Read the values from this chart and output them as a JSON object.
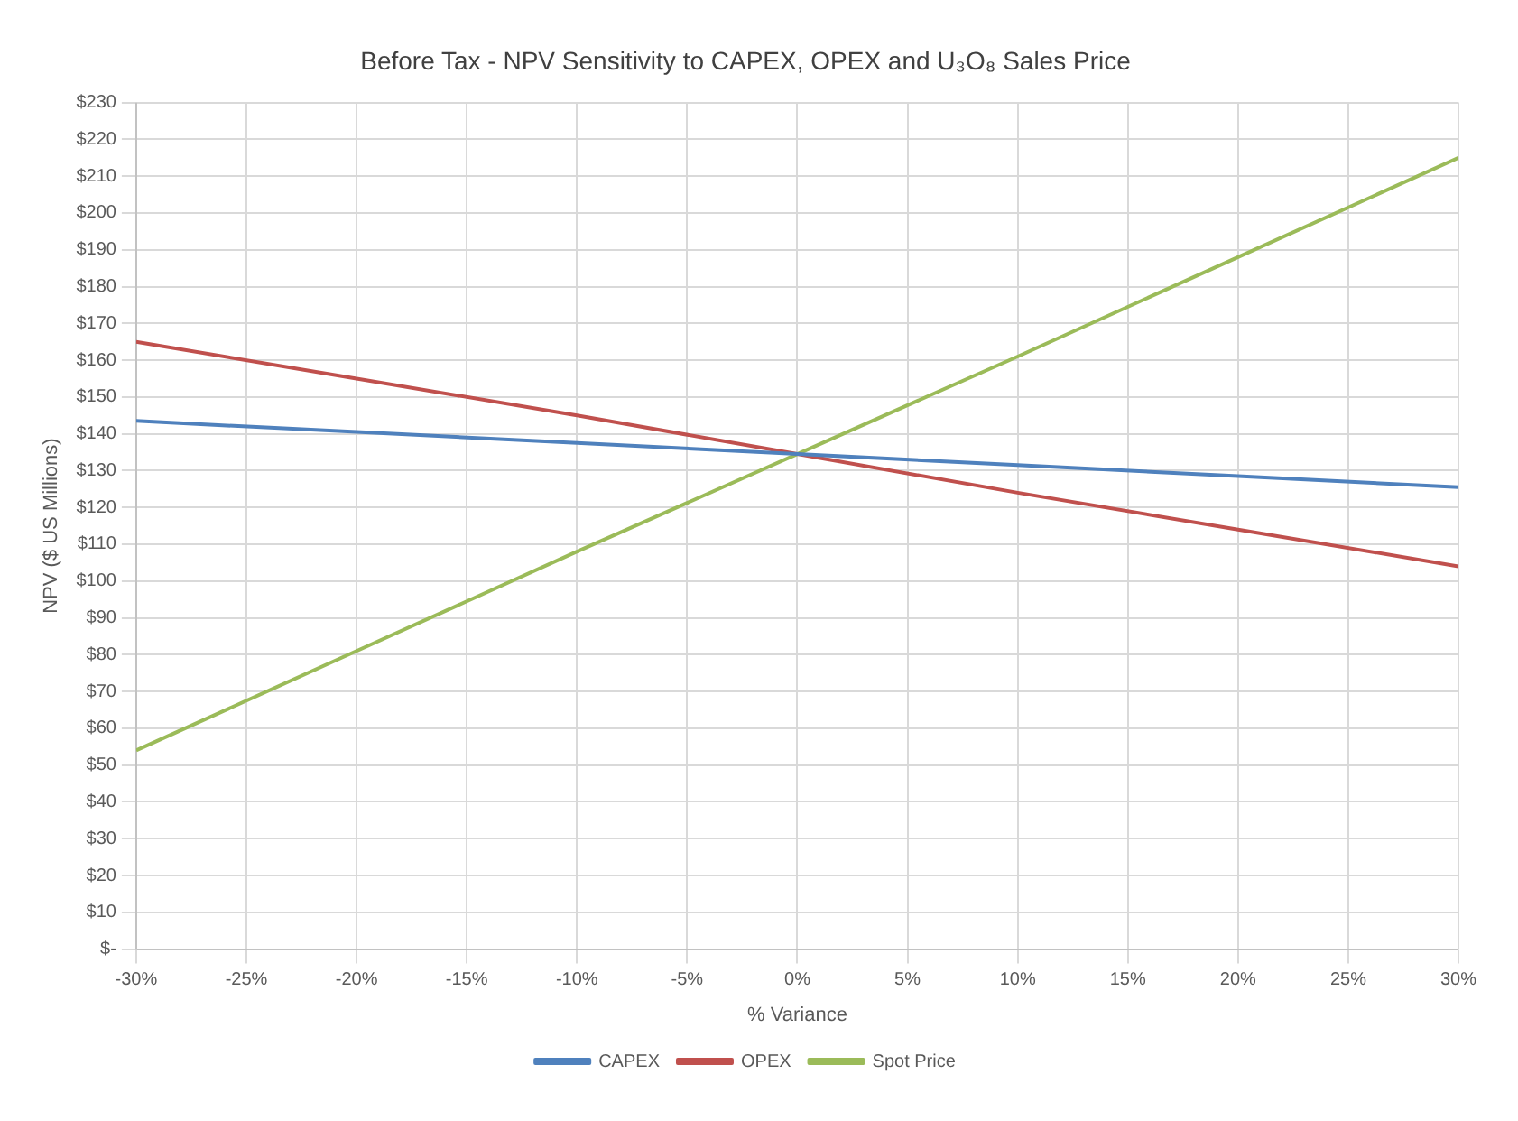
{
  "chart_data": {
    "type": "line",
    "title": "Before Tax - NPV Sensitivity to CAPEX, OPEX and U₃O₈ Sales Price",
    "xlabel": "% Variance",
    "ylabel": "NPV ($ US Millions)",
    "x": [
      -30,
      -20,
      -10,
      0,
      10,
      20,
      30
    ],
    "series": [
      {
        "name": "CAPEX",
        "color": "#4f81bd",
        "values": [
          143.5,
          140.5,
          137.5,
          134.5,
          131.5,
          128.5,
          125.5
        ]
      },
      {
        "name": "OPEX",
        "color": "#c0504d",
        "values": [
          165,
          155,
          145,
          134.5,
          124,
          114,
          104
        ]
      },
      {
        "name": "Spot Price",
        "color": "#9bbb59",
        "values": [
          54,
          81,
          108,
          134.5,
          161,
          188,
          215
        ]
      }
    ],
    "xlim": [
      -30,
      30
    ],
    "xticks": [
      {
        "value": -30,
        "label": "-30%"
      },
      {
        "value": -25,
        "label": "-25%"
      },
      {
        "value": -20,
        "label": "-20%"
      },
      {
        "value": -15,
        "label": "-15%"
      },
      {
        "value": -10,
        "label": "-10%"
      },
      {
        "value": -5,
        "label": "-5%"
      },
      {
        "value": 0,
        "label": "0%"
      },
      {
        "value": 5,
        "label": "5%"
      },
      {
        "value": 10,
        "label": "10%"
      },
      {
        "value": 15,
        "label": "15%"
      },
      {
        "value": 20,
        "label": "20%"
      },
      {
        "value": 25,
        "label": "25%"
      },
      {
        "value": 30,
        "label": "30%"
      }
    ],
    "ylim": [
      0,
      230
    ],
    "yticks": [
      {
        "value": 0,
        "label": "$-"
      },
      {
        "value": 10,
        "label": "$10"
      },
      {
        "value": 20,
        "label": "$20"
      },
      {
        "value": 30,
        "label": "$30"
      },
      {
        "value": 40,
        "label": "$40"
      },
      {
        "value": 50,
        "label": "$50"
      },
      {
        "value": 60,
        "label": "$60"
      },
      {
        "value": 70,
        "label": "$70"
      },
      {
        "value": 80,
        "label": "$80"
      },
      {
        "value": 90,
        "label": "$90"
      },
      {
        "value": 100,
        "label": "$100"
      },
      {
        "value": 110,
        "label": "$110"
      },
      {
        "value": 120,
        "label": "$120"
      },
      {
        "value": 130,
        "label": "$130"
      },
      {
        "value": 140,
        "label": "$140"
      },
      {
        "value": 150,
        "label": "$150"
      },
      {
        "value": 160,
        "label": "$160"
      },
      {
        "value": 170,
        "label": "$170"
      },
      {
        "value": 180,
        "label": "$180"
      },
      {
        "value": 190,
        "label": "$190"
      },
      {
        "value": 200,
        "label": "$200"
      },
      {
        "value": 210,
        "label": "$210"
      },
      {
        "value": 220,
        "label": "$220"
      },
      {
        "value": 230,
        "label": "$230"
      }
    ],
    "grid": true,
    "legend": "bottom",
    "marker": "none",
    "line_style": "solid"
  }
}
